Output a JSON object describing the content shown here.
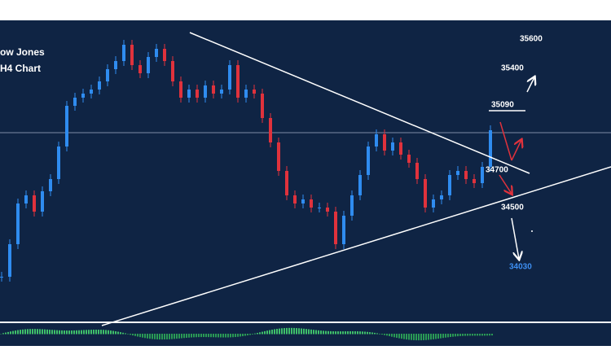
{
  "chart_data": {
    "type": "candlestick",
    "title": "ow Jones",
    "subtitle": "H4 Chart",
    "values": [
      34040,
      34240,
      34490,
      34540,
      34440,
      34565,
      34640,
      34840,
      35090,
      35140,
      35165,
      35190,
      35240,
      35315,
      35365,
      35465,
      35340,
      35290,
      35390,
      35440,
      35365,
      35240,
      35140,
      35190,
      35140,
      35215,
      35165,
      35190,
      35340,
      35140,
      35190,
      35165,
      35015,
      34865,
      34690,
      34540,
      34490,
      34515,
      34465,
      34465,
      34440,
      34240,
      34415,
      34540,
      34665,
      34840,
      34915,
      34815,
      34865,
      34790,
      34740,
      34640,
      34465,
      34515,
      34540,
      34665,
      34690,
      34640,
      34615,
      34715,
      34940
    ],
    "ylim": [
      33765,
      35615
    ],
    "up_color": "#2f8cf0",
    "down_color": "#e0323c",
    "annotations": [
      "35600",
      "35400",
      "35090",
      "34700",
      "34500",
      "34030"
    ]
  }
}
